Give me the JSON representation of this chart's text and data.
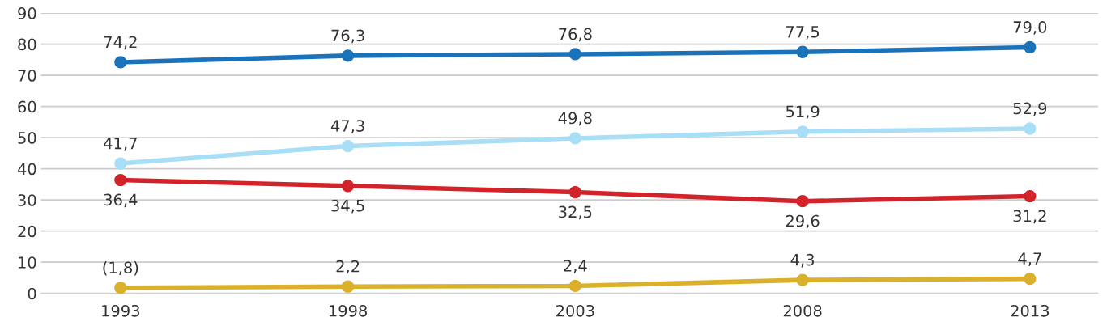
{
  "chart_data": {
    "type": "line",
    "categories": [
      "1993",
      "1998",
      "2003",
      "2008",
      "2013"
    ],
    "series": [
      {
        "color": "#1a72bb",
        "values": [
          74.2,
          76.3,
          76.8,
          77.5,
          79.0
        ],
        "value_labels": [
          "74,2",
          "76,3",
          "76,8",
          "77,5",
          "79,0"
        ]
      },
      {
        "color": "#a8def6",
        "values": [
          41.7,
          47.3,
          49.8,
          51.9,
          52.9
        ],
        "value_labels": [
          "41,7",
          "47,3",
          "49,8",
          "51,9",
          "52,9"
        ]
      },
      {
        "color": "#d2232a",
        "values": [
          36.4,
          34.5,
          32.5,
          29.6,
          31.2
        ],
        "value_labels": [
          "36,4",
          "34,5",
          "32,5",
          "29,6",
          "31,2"
        ]
      },
      {
        "color": "#dbb02a",
        "values": [
          1.8,
          2.2,
          2.4,
          4.3,
          4.7
        ],
        "value_labels": [
          "(1,8)",
          "2,2",
          "2,4",
          "4,3",
          "4,7"
        ]
      }
    ],
    "ylim": [
      0,
      90
    ],
    "yticks": [
      0,
      10,
      20,
      30,
      40,
      50,
      60,
      70,
      80,
      90
    ],
    "grid": "y",
    "marker": "circle",
    "line_style": "solid"
  }
}
